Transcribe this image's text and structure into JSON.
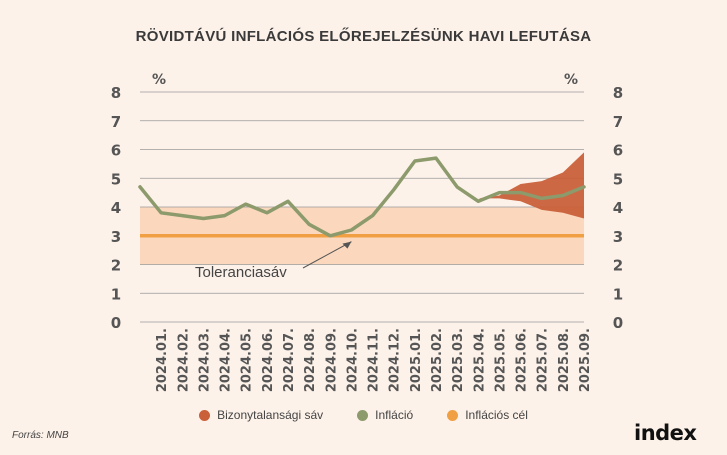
{
  "title": "RÖVIDTÁVÚ INFLÁCIÓS ELŐREJELZÉSÜNK HAVI LEFUTÁSA",
  "source": "Forrás: MNB",
  "logo": "index",
  "colors": {
    "background": "#fdf2ea",
    "band": "#c9603a",
    "inflation": "#8c9a6c",
    "target": "#f0a042",
    "tolerance": "#fbd8bd",
    "grid": "#999999"
  },
  "chart_data": {
    "type": "line",
    "xlabel": "",
    "ylabel": "%",
    "ylabel_right": "%",
    "ylim": [
      0,
      8
    ],
    "yticks": [
      0,
      1,
      2,
      3,
      4,
      5,
      6,
      7,
      8
    ],
    "categories": [
      "2024.01.",
      "2024.02.",
      "2024.03.",
      "2024.04.",
      "2024.05.",
      "2024.06.",
      "2024.07.",
      "2024.08.",
      "2024.09.",
      "2024.10.",
      "2024.11.",
      "2024.12.",
      "2025.01.",
      "2025.02.",
      "2025.03.",
      "2025.04.",
      "2025.05.",
      "2025.06.",
      "2025.07.",
      "2025.08.",
      "2025.09."
    ],
    "grid": true,
    "series": [
      {
        "name": "Infláció",
        "type": "line",
        "x": [
          "2023.12.",
          "2024.01.",
          "2024.02.",
          "2024.03.",
          "2024.04.",
          "2024.05.",
          "2024.06.",
          "2024.07.",
          "2024.08.",
          "2024.09.",
          "2024.10.",
          "2024.11.",
          "2024.12.",
          "2025.01.",
          "2025.02.",
          "2025.03.",
          "2025.04.",
          "2025.05.",
          "2025.06.",
          "2025.07.",
          "2025.08.",
          "2025.09."
        ],
        "values": [
          4.7,
          3.8,
          3.7,
          3.6,
          3.7,
          4.1,
          3.8,
          4.2,
          3.4,
          3.0,
          3.2,
          3.7,
          4.6,
          5.6,
          5.7,
          4.7,
          4.2,
          4.5,
          4.5,
          4.3,
          4.4,
          4.7
        ]
      },
      {
        "name": "Bizonytalansági sáv",
        "type": "band",
        "x": [
          "2025.04.",
          "2025.05.",
          "2025.06.",
          "2025.07.",
          "2025.08.",
          "2025.09."
        ],
        "upper": [
          4.3,
          4.4,
          4.8,
          4.9,
          5.2,
          5.9
        ],
        "lower": [
          4.3,
          4.3,
          4.2,
          3.9,
          3.8,
          3.6
        ]
      },
      {
        "name": "Inflációs cél",
        "type": "hline",
        "value": 3
      }
    ],
    "tolerance_band": {
      "lower": 2,
      "upper": 4
    },
    "annotations": [
      {
        "text": "Toleranciasáv",
        "target_x": "2024.10.",
        "target_y": 2.9
      }
    ],
    "legend": {
      "position": "bottom",
      "items": [
        {
          "label": "Bizonytalansági sáv",
          "color": "#c9603a"
        },
        {
          "label": "Infláció",
          "color": "#8c9a6c"
        },
        {
          "label": "Inflációs cél",
          "color": "#f0a042"
        }
      ]
    }
  }
}
